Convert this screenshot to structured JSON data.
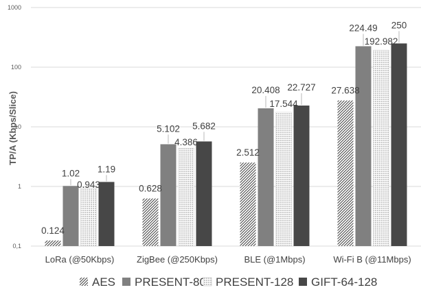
{
  "chart_data": {
    "type": "bar",
    "title": "",
    "ylabel": "TP/A (Kbps/Slice)",
    "xlabel": "",
    "y_scale": "log",
    "ylim": [
      0.1,
      1000
    ],
    "y_ticks": [
      {
        "value": 0.1,
        "label": "0,1"
      },
      {
        "value": 1,
        "label": "1"
      },
      {
        "value": 10,
        "label": "10"
      },
      {
        "value": 100,
        "label": "100"
      },
      {
        "value": 1000,
        "label": "1000"
      }
    ],
    "grid": true,
    "legend_position": "bottom",
    "categories": [
      "LoRa (@50Kbps)",
      "ZigBee (@250Kbps)",
      "BLE (@1Mbps)",
      "Wi-Fi B (@11Mbps)"
    ],
    "series": [
      {
        "name": "AES",
        "pattern": "diagonal-hatch",
        "color": "#404040",
        "values": [
          0.124,
          0.628,
          2.512,
          27.638
        ],
        "labels": [
          "0.124",
          "0.628",
          "2.512",
          "27.638"
        ]
      },
      {
        "name": "PRESENT-80",
        "pattern": "solid",
        "color": "#808080",
        "values": [
          1.02,
          5.102,
          20.408,
          224.49
        ],
        "labels": [
          "1.02",
          "5.102",
          "20.408",
          "224.49"
        ]
      },
      {
        "name": "PRESENT-128",
        "pattern": "dotted-grid",
        "color": "#bfbfbf",
        "values": [
          0.943,
          4.386,
          17.544,
          192.982
        ],
        "labels": [
          "0.943",
          "4.386",
          "17.544",
          "192.982"
        ]
      },
      {
        "name": "GIFT-64-128",
        "pattern": "solid",
        "color": "#474747",
        "values": [
          1.19,
          5.682,
          22.727,
          250
        ],
        "labels": [
          "1.19",
          "5.682",
          "22.727",
          "250"
        ]
      }
    ]
  }
}
